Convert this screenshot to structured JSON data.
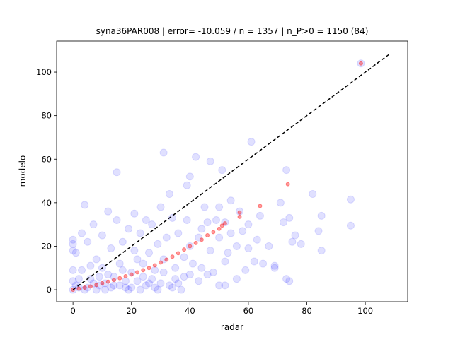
{
  "chart_data": {
    "type": "scatter",
    "title": "syna36PAR008 | error= -10.059 / n = 1357 | n_P>0 = 1150 (84)",
    "x_label": "radar",
    "y_label": "modelo",
    "xlim": [
      -5.6,
      114.5
    ],
    "ylim": [
      -5.5,
      114.3
    ],
    "xticks": [
      0,
      20,
      40,
      60,
      80,
      100
    ],
    "yticks": [
      0,
      20,
      40,
      60,
      80,
      100
    ],
    "grid": false,
    "series": [
      {
        "color": "#0000ff",
        "opacity": 0.12,
        "radius": 5,
        "x": [
          98.5,
          95,
          95,
          85,
          84,
          85,
          82,
          78,
          76,
          75,
          73,
          72,
          74,
          73,
          74,
          71,
          69,
          69,
          67,
          65,
          64,
          63,
          62,
          61,
          60,
          60,
          59,
          58,
          57,
          56,
          56,
          54,
          54,
          53,
          52,
          52,
          52,
          51,
          50,
          50,
          49,
          48,
          47,
          47,
          46,
          45,
          44,
          43,
          43,
          42,
          41,
          40,
          40,
          40,
          39,
          39,
          38,
          37,
          36,
          35,
          34,
          33,
          32,
          31,
          31,
          30,
          30,
          29,
          28,
          27,
          26,
          25,
          25,
          24,
          23,
          22,
          21,
          21,
          20,
          19,
          18,
          17,
          16,
          15,
          15,
          14,
          13,
          12,
          11,
          10,
          10,
          9,
          8,
          7,
          6,
          5,
          4,
          4,
          3,
          3,
          2,
          1,
          0,
          0,
          0,
          0,
          0,
          0,
          1,
          2,
          5,
          7,
          9,
          11,
          13,
          16,
          18,
          20,
          23,
          26,
          28,
          33,
          35,
          38,
          44,
          46,
          50,
          8,
          6,
          12,
          14,
          17,
          19,
          22,
          24,
          27,
          29,
          31,
          34,
          36
        ],
        "values": [
          104,
          41.5,
          29.5,
          34,
          27,
          18,
          44,
          21,
          25,
          22,
          55,
          31,
          33,
          5,
          4,
          40,
          10,
          11,
          20,
          12,
          34,
          23,
          13,
          68,
          30,
          19,
          9,
          27,
          36,
          20,
          5,
          41,
          26,
          17,
          31,
          13,
          2,
          55,
          38,
          24,
          32,
          8,
          59,
          18,
          31,
          38,
          28,
          24,
          4,
          61,
          12,
          20,
          7,
          52,
          48,
          32,
          15,
          0,
          26,
          5,
          33,
          44,
          24,
          63,
          14,
          38,
          3,
          21,
          9,
          30,
          17,
          32,
          2,
          12,
          26,
          4,
          35,
          18,
          8,
          28,
          1,
          22,
          12,
          54,
          32,
          6,
          19,
          36,
          3,
          25,
          10,
          2,
          14,
          30,
          5,
          22,
          39,
          0,
          26,
          9,
          1,
          17,
          21,
          23,
          18,
          9,
          4,
          0,
          2,
          5,
          1,
          3,
          6,
          0,
          1,
          2,
          4,
          1,
          0,
          3,
          1,
          2,
          10,
          6,
          10,
          7,
          2,
          0,
          11,
          7,
          2,
          9,
          0,
          14,
          6,
          5,
          0,
          8,
          1,
          3
        ]
      },
      {
        "color": "#ff0000",
        "opacity": 0.4,
        "radius": 2.5,
        "x": [
          0,
          2,
          4,
          6,
          8,
          10,
          12,
          14,
          16,
          18,
          20,
          22,
          24,
          26,
          28,
          30,
          32,
          34,
          36,
          38,
          40,
          42,
          44,
          46,
          48,
          50,
          51,
          52,
          57,
          57,
          64,
          73.5,
          98.5
        ],
        "values": [
          0,
          0.5,
          1,
          1.5,
          2.2,
          3,
          3.7,
          4.5,
          5.3,
          6.2,
          7,
          8,
          9,
          10,
          11.2,
          12.5,
          13.8,
          15.2,
          16.8,
          18.5,
          20,
          21.5,
          23,
          25,
          26.5,
          28,
          29.5,
          30.5,
          33.5,
          35.5,
          38.5,
          48.5,
          104
        ]
      }
    ],
    "identity_line": {
      "color": "#000000",
      "dashed": true,
      "x": [
        0,
        108.5
      ],
      "values": [
        0,
        108.5
      ]
    }
  }
}
